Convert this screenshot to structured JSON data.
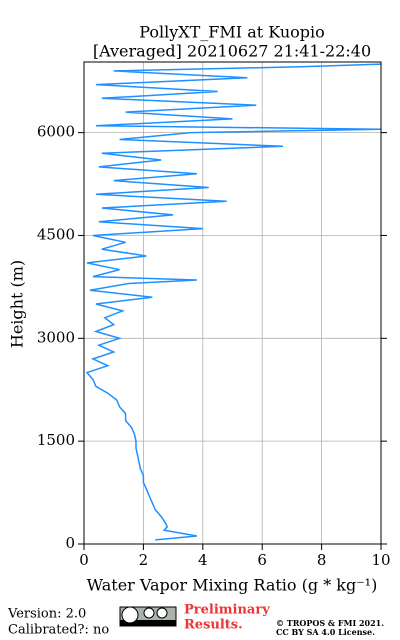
{
  "chart_data": {
    "type": "line",
    "title": "PollyXT_FMI at Kuopio",
    "subtitle": "[Averaged] 20210627 21:41-22:40",
    "x_label": "Water Vapor Mixing Ratio (g * kg⁻¹)",
    "y_label": "Height (m)",
    "color": "#1e90ff",
    "grid": true,
    "xlim": [
      0,
      10
    ],
    "xticks": [
      0,
      2,
      4,
      6,
      8,
      10
    ],
    "ylim": [
      0,
      7030
    ],
    "yticks": [
      0,
      1500,
      3000,
      4500,
      6000
    ],
    "x": [
      2.4,
      3.8,
      2.7,
      2.8,
      2.75,
      2.6,
      2.4,
      2.3,
      2.2,
      2.1,
      2.0,
      2.0,
      1.9,
      1.85,
      1.8,
      1.75,
      1.75,
      1.7,
      1.6,
      1.4,
      1.4,
      1.2,
      1.1,
      0.8,
      0.4,
      0.3,
      0.1,
      0.8,
      0.3,
      1.0,
      0.5,
      1.2,
      0.4,
      1.0,
      0.7,
      1.3,
      0.4,
      2.3,
      0.2,
      1.5,
      3.8,
      0.3,
      1.2,
      0.1,
      2.1,
      0.6,
      1.4,
      0.3,
      4.0,
      0.5,
      3.0,
      0.6,
      4.8,
      0.4,
      4.2,
      1.0,
      3.8,
      0.5,
      2.6,
      0.6,
      6.7,
      1.2,
      3.6,
      10.0,
      0.4,
      5.0,
      1.4,
      5.8,
      0.6,
      4.5,
      0.4,
      5.5,
      1.0,
      7.3,
      10.0
    ],
    "y": [
      60,
      117,
      200,
      250,
      300,
      400,
      500,
      600,
      700,
      800,
      900,
      1000,
      1100,
      1200,
      1300,
      1400,
      1500,
      1600,
      1700,
      1800,
      1900,
      2000,
      2100,
      2200,
      2300,
      2400,
      2500,
      2600,
      2700,
      2800,
      2900,
      3000,
      3100,
      3200,
      3300,
      3400,
      3500,
      3600,
      3700,
      3800,
      3850,
      3900,
      4000,
      4100,
      4200,
      4300,
      4400,
      4500,
      4600,
      4700,
      4800,
      4900,
      5000,
      5100,
      5200,
      5300,
      5400,
      5500,
      5600,
      5700,
      5800,
      5900,
      6000,
      6050,
      6100,
      6200,
      6300,
      6400,
      6500,
      6600,
      6700,
      6800,
      6900,
      6960,
      7000
    ]
  },
  "footer": {
    "version": "Version: 2.0",
    "calibrated": "Calibrated?: no",
    "preliminary": "Preliminary",
    "results": "Results.",
    "copyright": "© TROPOS & FMI 2021.",
    "license": "CC BY SA 4.0 License."
  }
}
